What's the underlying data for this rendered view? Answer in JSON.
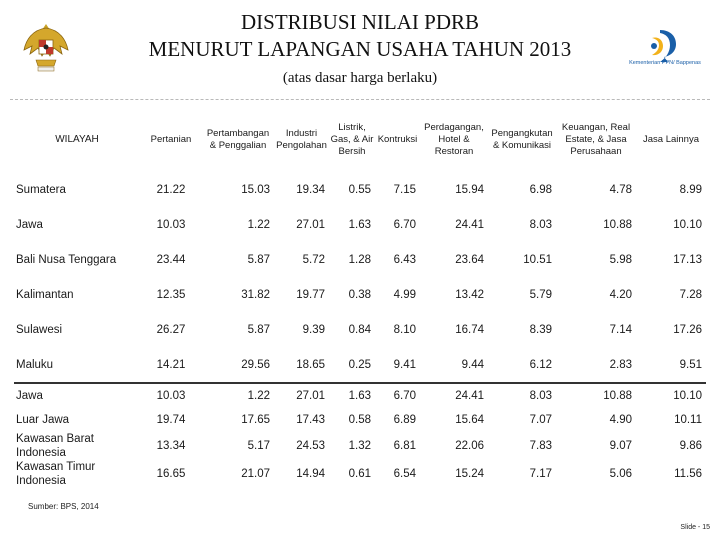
{
  "title_line1": "DISTRIBUSI NILAI PDRB",
  "title_line2": "MENURUT LAPANGAN USAHA TAHUN 2013",
  "subtitle": "(atas dasar harga berlaku)",
  "logo_text": "Kementerian PPN/ Bappenas",
  "headers": {
    "wilayah": "WILAYAH",
    "cols": [
      "Pertanian",
      "Pertambangan & Penggalian",
      "Industri Pengolahan",
      "Listrik, Gas, & Air Bersih",
      "Kontruksi",
      "Perdagangan, Hotel & Restoran",
      "Pengangkutan & Komunikasi",
      "Keuangan, Real Estate, & Jasa Perusahaan",
      "Jasa Lainnya"
    ]
  },
  "rows_upper": [
    {
      "label": "Sumatera",
      "values": [
        "21.22",
        "15.03",
        "19.34",
        "0.55",
        "7.15",
        "15.94",
        "6.98",
        "4.78",
        "8.99"
      ]
    },
    {
      "label": "Jawa",
      "values": [
        "10.03",
        "1.22",
        "27.01",
        "1.63",
        "6.70",
        "24.41",
        "8.03",
        "10.88",
        "10.10"
      ]
    },
    {
      "label": "Bali Nusa Tenggara",
      "values": [
        "23.44",
        "5.87",
        "5.72",
        "1.28",
        "6.43",
        "23.64",
        "10.51",
        "5.98",
        "17.13"
      ]
    },
    {
      "label": "Kalimantan",
      "values": [
        "12.35",
        "31.82",
        "19.77",
        "0.38",
        "4.99",
        "13.42",
        "5.79",
        "4.20",
        "7.28"
      ]
    },
    {
      "label": "Sulawesi",
      "values": [
        "26.27",
        "5.87",
        "9.39",
        "0.84",
        "8.10",
        "16.74",
        "8.39",
        "7.14",
        "17.26"
      ]
    },
    {
      "label": "Maluku",
      "values": [
        "14.21",
        "29.56",
        "18.65",
        "0.25",
        "9.41",
        "9.44",
        "6.12",
        "2.83",
        "9.51"
      ]
    }
  ],
  "rows_lower": [
    {
      "label": "Jawa",
      "values": [
        "10.03",
        "1.22",
        "27.01",
        "1.63",
        "6.70",
        "24.41",
        "8.03",
        "10.88",
        "10.10"
      ]
    },
    {
      "label": "Luar Jawa",
      "values": [
        "19.74",
        "17.65",
        "17.43",
        "0.58",
        "6.89",
        "15.64",
        "7.07",
        "4.90",
        "10.11"
      ]
    },
    {
      "label": "Kawasan Barat Indonesia",
      "values": [
        "13.34",
        "5.17",
        "24.53",
        "1.32",
        "6.81",
        "22.06",
        "7.83",
        "9.07",
        "9.86"
      ]
    },
    {
      "label": "Kawasan Timur Indonesia",
      "values": [
        "16.65",
        "21.07",
        "14.94",
        "0.61",
        "6.54",
        "15.24",
        "7.17",
        "5.06",
        "11.56"
      ]
    }
  ],
  "source": "Sumber: BPS, 2014",
  "slide": "Slide - 15"
}
